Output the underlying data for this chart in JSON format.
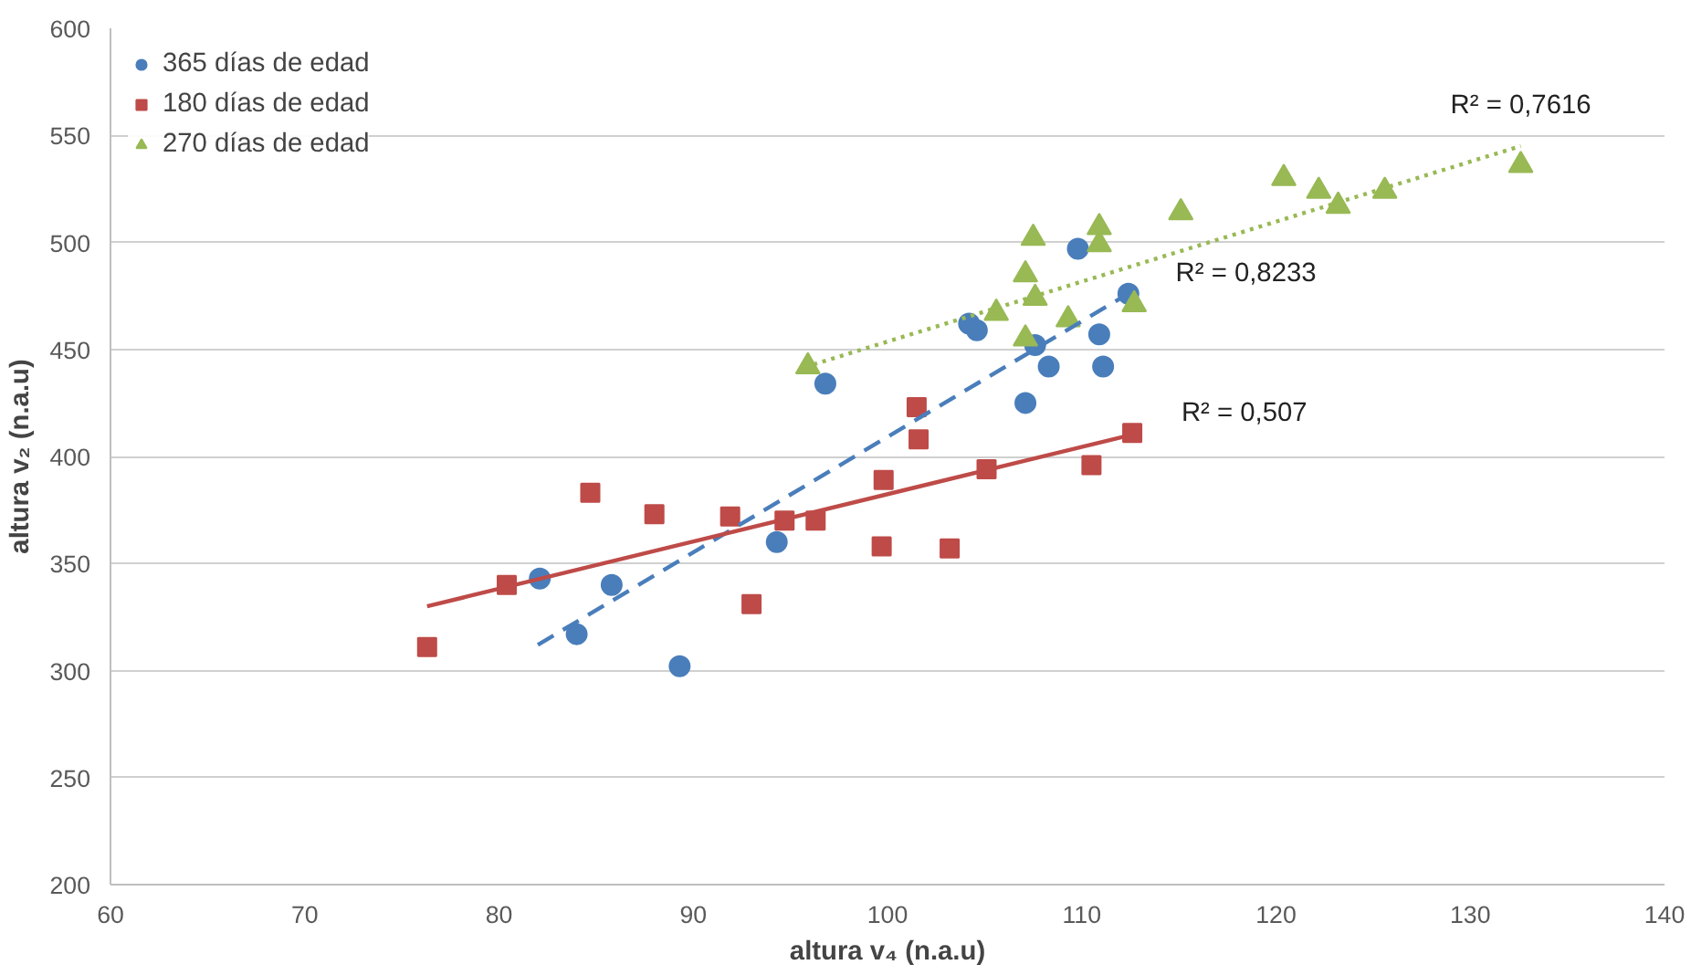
{
  "chart_data": {
    "type": "scatter",
    "xlabel": "altura v₄ (n.a.u)",
    "ylabel": "altura v₂ (n.a.u)",
    "xlim": [
      60,
      140
    ],
    "ylim": [
      200,
      600
    ],
    "xticks": [
      60,
      70,
      80,
      90,
      100,
      110,
      120,
      130,
      140
    ],
    "yticks": [
      200,
      250,
      300,
      350,
      400,
      450,
      500,
      550,
      600
    ],
    "grid": "y",
    "legend": "top left",
    "series": [
      {
        "name": "365 días de edad",
        "color": "#4a7ebb",
        "marker": "circle",
        "x": [
          82.1,
          84.0,
          85.8,
          89.3,
          94.3,
          96.8,
          104.2,
          104.6,
          107.1,
          107.6,
          108.3,
          109.8,
          110.9,
          111.1,
          112.4
        ],
        "values": [
          343,
          317,
          340,
          302,
          360,
          434,
          462,
          459,
          425,
          452,
          442,
          497,
          457,
          442,
          476
        ]
      },
      {
        "name": "180 días de edad",
        "color": "#be4b48",
        "marker": "square",
        "x": [
          76.3,
          80.4,
          84.7,
          88.0,
          91.9,
          93.0,
          94.7,
          96.3,
          99.7,
          99.8,
          101.5,
          101.6,
          103.2,
          105.1,
          110.5,
          112.6
        ],
        "values": [
          311,
          340,
          383,
          373,
          372,
          331,
          370,
          370,
          358,
          389,
          423,
          408,
          357,
          394,
          396,
          411
        ]
      },
      {
        "name": "270 días de edad",
        "color": "#98b954",
        "marker": "triangle",
        "x": [
          95.9,
          105.6,
          107.1,
          107.1,
          107.5,
          107.6,
          109.3,
          110.9,
          110.9,
          112.7,
          115.1,
          120.4,
          122.2,
          123.2,
          125.6,
          132.6
        ],
        "values": [
          442,
          467,
          455,
          485,
          502,
          474,
          464,
          507,
          499,
          471,
          514,
          530,
          524,
          517,
          524,
          536
        ]
      },
      {
        "type": "line",
        "color": "#98b954",
        "line_style": "dotted",
        "marker": "none",
        "x": [
          96.2,
          132.6
        ],
        "values": [
          443,
          545
        ]
      },
      {
        "type": "line",
        "color": "#4a7ebb",
        "line_style": "dashed",
        "marker": "none",
        "x": [
          82.0,
          112.2
        ],
        "values": [
          312,
          475
        ]
      },
      {
        "type": "line",
        "color": "#be4b48",
        "line_style": "solid",
        "marker": "none",
        "x": [
          76.3,
          112.5
        ],
        "values": [
          330,
          410
        ]
      }
    ],
    "annotations": [
      "R² = 0,7616",
      "R² = 0,8233",
      "R² = 0,507"
    ]
  }
}
